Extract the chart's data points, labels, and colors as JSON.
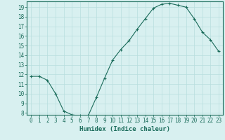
{
  "xlabel": "Humidex (Indice chaleur)",
  "ylabel": "",
  "x": [
    0,
    1,
    2,
    3,
    4,
    5,
    6,
    7,
    8,
    9,
    10,
    11,
    12,
    13,
    14,
    15,
    16,
    17,
    18,
    19,
    20,
    21,
    22,
    23
  ],
  "y": [
    11.8,
    11.8,
    11.4,
    10.0,
    8.2,
    7.8,
    7.7,
    7.7,
    9.6,
    11.6,
    13.5,
    14.6,
    15.5,
    16.7,
    17.8,
    18.9,
    19.3,
    19.4,
    19.2,
    19.0,
    17.8,
    16.4,
    15.6,
    14.4
  ],
  "ylim": [
    7.8,
    19.6
  ],
  "yticks": [
    8,
    9,
    10,
    11,
    12,
    13,
    14,
    15,
    16,
    17,
    18,
    19
  ],
  "xlim": [
    -0.5,
    23.5
  ],
  "xticks": [
    0,
    1,
    2,
    3,
    4,
    5,
    6,
    7,
    8,
    9,
    10,
    11,
    12,
    13,
    14,
    15,
    16,
    17,
    18,
    19,
    20,
    21,
    22,
    23
  ],
  "line_color": "#1a6b5a",
  "marker": "+",
  "marker_size": 3,
  "marker_linewidth": 0.8,
  "background_color": "#d8f0f0",
  "grid_color": "#b8dede",
  "tick_label_color": "#1a6b5a",
  "xlabel_color": "#1a6b5a",
  "tick_fontsize": 5.5,
  "xlabel_fontsize": 6.5,
  "linewidth": 0.8
}
